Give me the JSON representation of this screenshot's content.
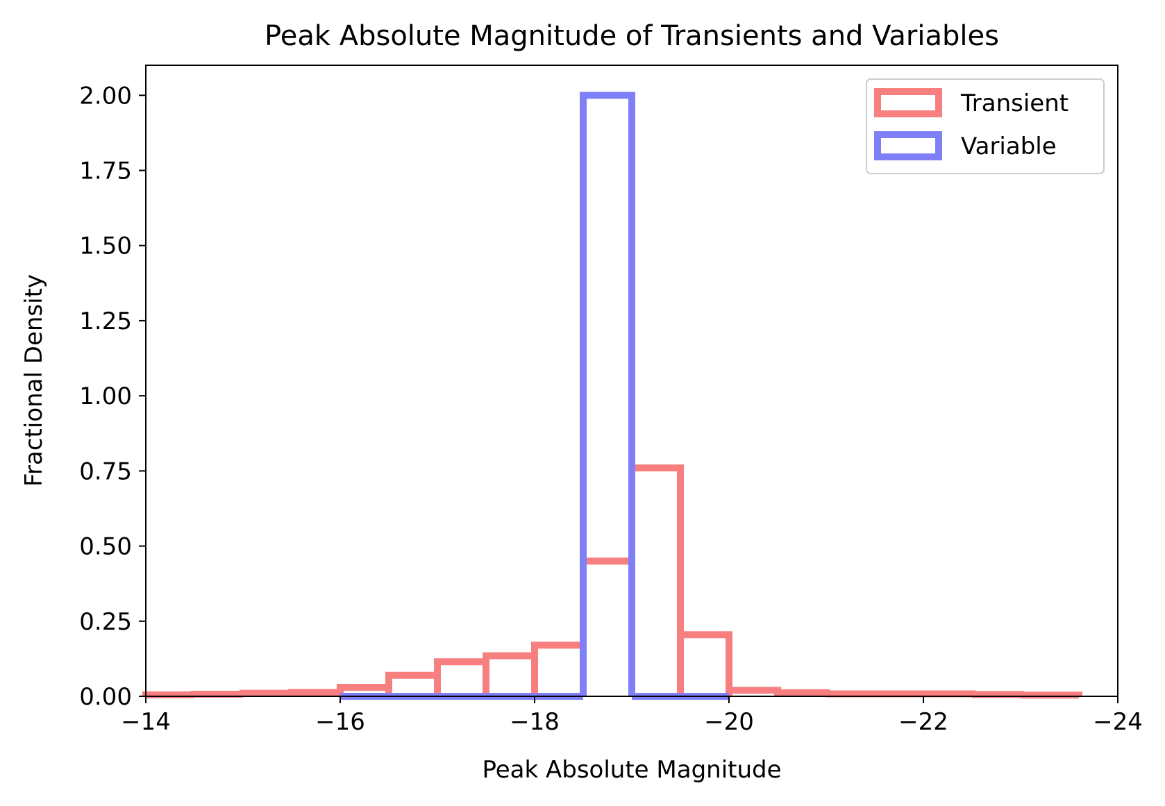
{
  "chart_data": {
    "type": "histogram",
    "title": "Peak Absolute Magnitude of Transients and Variables",
    "xlabel": "Peak Absolute Magnitude",
    "ylabel": "Fractional Density",
    "xlim": [
      -14,
      -24
    ],
    "ylim": [
      0,
      2.1
    ],
    "x_inverted": true,
    "xticks": [
      -14,
      -16,
      -18,
      -20,
      -22,
      -24
    ],
    "xtick_labels": [
      "−14",
      "−16",
      "−18",
      "−20",
      "−22",
      "−24"
    ],
    "yticks": [
      0,
      0.25,
      0.5,
      0.75,
      1.0,
      1.25,
      1.5,
      1.75,
      2.0
    ],
    "ytick_labels": [
      "0.00",
      "0.25",
      "0.50",
      "0.75",
      "1.00",
      "1.25",
      "1.50",
      "1.75",
      "2.00"
    ],
    "grid": false,
    "legend_position": "top-right",
    "series": [
      {
        "name": "Transient",
        "color": "#f87f7f",
        "bin_edges": [
          -14.0,
          -14.5,
          -15.0,
          -15.5,
          -16.0,
          -16.5,
          -17.0,
          -17.5,
          -18.0,
          -18.5,
          -19.0,
          -19.5,
          -20.0,
          -20.5,
          -21.0,
          -21.5,
          -22.0,
          -22.5,
          -23.0,
          -23.6
        ],
        "values": [
          0.005,
          0.007,
          0.01,
          0.013,
          0.03,
          0.07,
          0.115,
          0.135,
          0.17,
          0.45,
          0.76,
          0.205,
          0.02,
          0.012,
          0.008,
          0.008,
          0.008,
          0.006,
          0.004
        ]
      },
      {
        "name": "Variable",
        "color": "#7f7ff8",
        "bin_edges": [
          -16.0,
          -18.5,
          -19.0,
          -20.0
        ],
        "values": [
          0.0,
          2.0,
          0.0
        ]
      }
    ]
  }
}
